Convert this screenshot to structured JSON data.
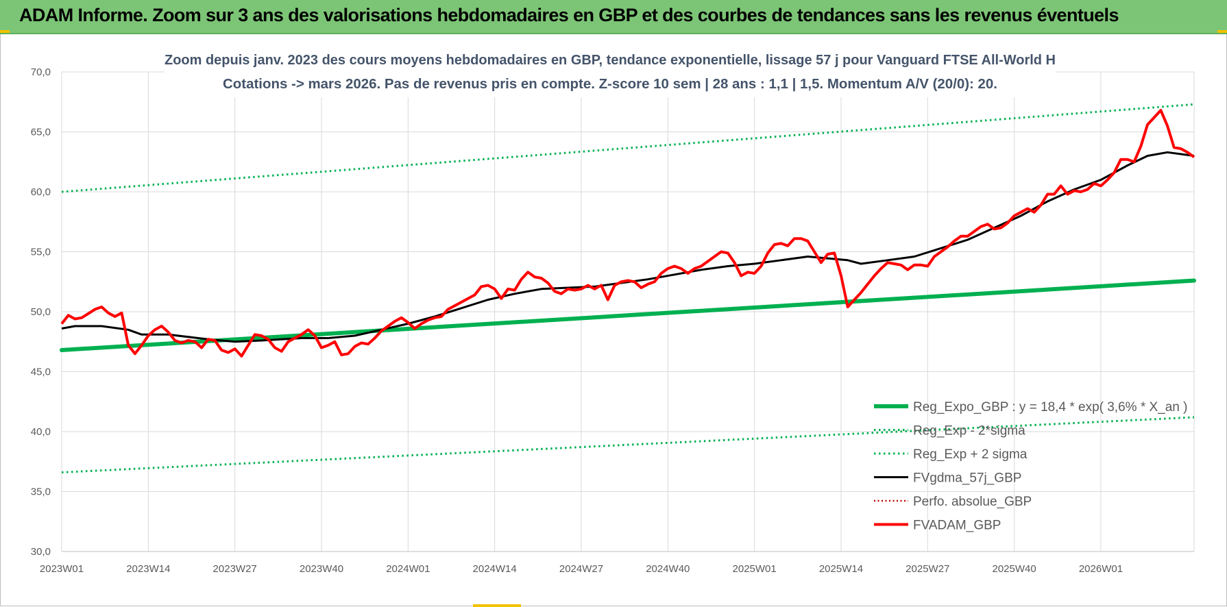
{
  "header": {
    "title": "ADAM Informe. Zoom sur 3 ans des valorisations hebdomadaires en GBP et des courbes de tendances sans les revenus éventuels"
  },
  "colors": {
    "banner": "#7cc576",
    "reg_expo": "#00b050",
    "bands": "#00b050",
    "fv_gdma": "#000000",
    "perfo": "#c00000",
    "fvadam": "#ff0000"
  },
  "chart_data": {
    "type": "line",
    "title_line1": "Zoom depuis janv. 2023 des cours moyens hebdomadaires en GBP, tendance exponentielle, lissage 57 j pour Vanguard FTSE All-World H",
    "title_line2": "Cotations -> mars 2026. Pas de revenus pris en compte. Z-score 10 sem | 28 ans : 1,1 | 1,5. Momentum A/V (20/0): 20.",
    "y_ticks": [
      "70,0",
      "65,0",
      "60,0",
      "55,0",
      "50,0",
      "45,0",
      "40,0",
      "35,0",
      "30,0"
    ],
    "ylim": [
      30,
      70
    ],
    "x_ticks": [
      "2023W01",
      "2023W14",
      "2023W27",
      "2023W40",
      "2024W01",
      "2024W14",
      "2024W27",
      "2024W40",
      "2025W01",
      "2025W14",
      "2025W27",
      "2025W40",
      "2026W01"
    ],
    "x_tick_weeks": [
      0,
      13,
      26,
      39,
      52,
      65,
      78,
      91,
      104,
      117,
      130,
      143,
      156
    ],
    "x_range_weeks": [
      0,
      170
    ],
    "grid": true,
    "legend_position": "bottom-right",
    "legend": [
      "Reg_Expo_GBP : y = 18,4 * exp( 3,6% *  X_an )",
      "Reg_Exp - 2*sigma",
      "Reg_Exp + 2 sigma",
      "FVgdma_57j_GBP",
      "Perfo. absolue_GBP",
      "FVADAM_GBP"
    ],
    "series": [
      {
        "name": "Reg_Expo_GBP",
        "style": "thick-solid",
        "points": [
          [
            0,
            46.8
          ],
          [
            170,
            52.6
          ]
        ]
      },
      {
        "name": "Reg_Exp - 2*sigma",
        "style": "dotted",
        "points": [
          [
            0,
            36.6
          ],
          [
            170,
            41.2
          ]
        ]
      },
      {
        "name": "Reg_Exp + 2 sigma",
        "style": "dotted",
        "points": [
          [
            0,
            60.0
          ],
          [
            170,
            67.3
          ]
        ]
      },
      {
        "name": "FVgdma_57j_GBP",
        "style": "solid",
        "points": [
          [
            0,
            48.6
          ],
          [
            2,
            48.8
          ],
          [
            6,
            48.8
          ],
          [
            10,
            48.5
          ],
          [
            12,
            48.1
          ],
          [
            16,
            48.1
          ],
          [
            22,
            47.7
          ],
          [
            26,
            47.5
          ],
          [
            30,
            47.6
          ],
          [
            36,
            47.8
          ],
          [
            40,
            47.8
          ],
          [
            44,
            48.0
          ],
          [
            48,
            48.5
          ],
          [
            52,
            49.0
          ],
          [
            56,
            49.6
          ],
          [
            60,
            50.3
          ],
          [
            64,
            51.0
          ],
          [
            68,
            51.5
          ],
          [
            72,
            51.9
          ],
          [
            76,
            52.0
          ],
          [
            80,
            52.1
          ],
          [
            84,
            52.4
          ],
          [
            88,
            52.7
          ],
          [
            92,
            53.1
          ],
          [
            96,
            53.5
          ],
          [
            100,
            53.8
          ],
          [
            104,
            54.0
          ],
          [
            108,
            54.3
          ],
          [
            112,
            54.6
          ],
          [
            116,
            54.4
          ],
          [
            118,
            54.3
          ],
          [
            120,
            54.0
          ],
          [
            124,
            54.3
          ],
          [
            128,
            54.6
          ],
          [
            132,
            55.3
          ],
          [
            136,
            56.0
          ],
          [
            140,
            57.0
          ],
          [
            144,
            58.0
          ],
          [
            148,
            59.2
          ],
          [
            152,
            60.2
          ],
          [
            156,
            61.0
          ],
          [
            160,
            62.2
          ],
          [
            163,
            63.0
          ],
          [
            166,
            63.3
          ],
          [
            170,
            63.0
          ]
        ]
      },
      {
        "name": "FVADAM_GBP",
        "style": "red-solid",
        "points": [
          [
            0,
            49.0
          ],
          [
            1,
            49.7
          ],
          [
            2,
            49.4
          ],
          [
            3,
            49.5
          ],
          [
            5,
            50.2
          ],
          [
            6,
            50.4
          ],
          [
            7,
            49.9
          ],
          [
            8,
            49.6
          ],
          [
            9,
            49.9
          ],
          [
            10,
            47.2
          ],
          [
            11,
            46.5
          ],
          [
            12,
            47.2
          ],
          [
            13,
            48.0
          ],
          [
            14,
            48.5
          ],
          [
            15,
            48.8
          ],
          [
            16,
            48.3
          ],
          [
            17,
            47.6
          ],
          [
            18,
            47.4
          ],
          [
            19,
            47.6
          ],
          [
            20,
            47.5
          ],
          [
            21,
            47.0
          ],
          [
            22,
            47.7
          ],
          [
            23,
            47.6
          ],
          [
            24,
            46.8
          ],
          [
            25,
            46.6
          ],
          [
            26,
            46.9
          ],
          [
            27,
            46.3
          ],
          [
            28,
            47.2
          ],
          [
            29,
            48.1
          ],
          [
            30,
            48.0
          ],
          [
            31,
            47.7
          ],
          [
            32,
            47.0
          ],
          [
            33,
            46.7
          ],
          [
            34,
            47.5
          ],
          [
            35,
            47.8
          ],
          [
            36,
            48.1
          ],
          [
            37,
            48.5
          ],
          [
            38,
            48.0
          ],
          [
            39,
            47.0
          ],
          [
            40,
            47.2
          ],
          [
            41,
            47.5
          ],
          [
            42,
            46.4
          ],
          [
            43,
            46.5
          ],
          [
            44,
            47.1
          ],
          [
            45,
            47.4
          ],
          [
            46,
            47.3
          ],
          [
            47,
            47.8
          ],
          [
            48,
            48.4
          ],
          [
            49,
            48.8
          ],
          [
            50,
            49.2
          ],
          [
            51,
            49.5
          ],
          [
            52,
            49.1
          ],
          [
            53,
            48.6
          ],
          [
            54,
            49.0
          ],
          [
            55,
            49.3
          ],
          [
            56,
            49.5
          ],
          [
            57,
            49.6
          ],
          [
            58,
            50.2
          ],
          [
            59,
            50.5
          ],
          [
            60,
            50.8
          ],
          [
            61,
            51.1
          ],
          [
            62,
            51.4
          ],
          [
            63,
            52.1
          ],
          [
            64,
            52.2
          ],
          [
            65,
            51.9
          ],
          [
            66,
            51.1
          ],
          [
            67,
            51.9
          ],
          [
            68,
            51.8
          ],
          [
            69,
            52.7
          ],
          [
            70,
            53.3
          ],
          [
            71,
            52.9
          ],
          [
            72,
            52.8
          ],
          [
            73,
            52.4
          ],
          [
            74,
            51.7
          ],
          [
            75,
            51.5
          ],
          [
            76,
            51.9
          ],
          [
            77,
            51.8
          ],
          [
            78,
            51.9
          ],
          [
            79,
            52.2
          ],
          [
            80,
            51.9
          ],
          [
            81,
            52.2
          ],
          [
            82,
            51.0
          ],
          [
            83,
            52.2
          ],
          [
            84,
            52.5
          ],
          [
            85,
            52.6
          ],
          [
            86,
            52.5
          ],
          [
            87,
            52.0
          ],
          [
            88,
            52.3
          ],
          [
            89,
            52.5
          ],
          [
            90,
            53.2
          ],
          [
            91,
            53.6
          ],
          [
            92,
            53.8
          ],
          [
            93,
            53.6
          ],
          [
            94,
            53.2
          ],
          [
            95,
            53.6
          ],
          [
            96,
            53.8
          ],
          [
            97,
            54.2
          ],
          [
            98,
            54.6
          ],
          [
            99,
            55.0
          ],
          [
            100,
            54.9
          ],
          [
            101,
            54.1
          ],
          [
            102,
            53.0
          ],
          [
            103,
            53.3
          ],
          [
            104,
            53.2
          ],
          [
            105,
            53.8
          ],
          [
            106,
            54.9
          ],
          [
            107,
            55.6
          ],
          [
            108,
            55.7
          ],
          [
            109,
            55.5
          ],
          [
            110,
            56.1
          ],
          [
            111,
            56.1
          ],
          [
            112,
            55.9
          ],
          [
            113,
            55.0
          ],
          [
            114,
            54.1
          ],
          [
            115,
            54.8
          ],
          [
            116,
            54.9
          ],
          [
            117,
            53.0
          ],
          [
            118,
            50.4
          ],
          [
            119,
            51.0
          ],
          [
            120,
            51.6
          ],
          [
            121,
            52.3
          ],
          [
            122,
            53.0
          ],
          [
            123,
            53.6
          ],
          [
            124,
            54.1
          ],
          [
            125,
            54.0
          ],
          [
            126,
            53.9
          ],
          [
            127,
            53.5
          ],
          [
            128,
            53.9
          ],
          [
            129,
            53.9
          ],
          [
            130,
            53.8
          ],
          [
            131,
            54.6
          ],
          [
            132,
            55.0
          ],
          [
            133,
            55.4
          ],
          [
            134,
            55.9
          ],
          [
            135,
            56.3
          ],
          [
            136,
            56.3
          ],
          [
            137,
            56.7
          ],
          [
            138,
            57.1
          ],
          [
            139,
            57.3
          ],
          [
            140,
            56.9
          ],
          [
            141,
            57.0
          ],
          [
            142,
            57.4
          ],
          [
            143,
            58.0
          ],
          [
            144,
            58.3
          ],
          [
            145,
            58.6
          ],
          [
            146,
            58.3
          ],
          [
            147,
            58.9
          ],
          [
            148,
            59.8
          ],
          [
            149,
            59.8
          ],
          [
            150,
            60.5
          ],
          [
            151,
            59.8
          ],
          [
            152,
            60.1
          ],
          [
            153,
            60.0
          ],
          [
            154,
            60.2
          ],
          [
            155,
            60.7
          ],
          [
            156,
            60.5
          ],
          [
            157,
            61.0
          ],
          [
            158,
            61.6
          ],
          [
            159,
            62.7
          ],
          [
            160,
            62.7
          ],
          [
            161,
            62.5
          ],
          [
            162,
            63.8
          ],
          [
            163,
            65.6
          ],
          [
            164,
            66.2
          ],
          [
            165,
            66.8
          ],
          [
            166,
            65.5
          ],
          [
            167,
            63.7
          ],
          [
            168,
            63.6
          ],
          [
            169,
            63.3
          ],
          [
            170,
            62.9
          ]
        ]
      }
    ]
  }
}
